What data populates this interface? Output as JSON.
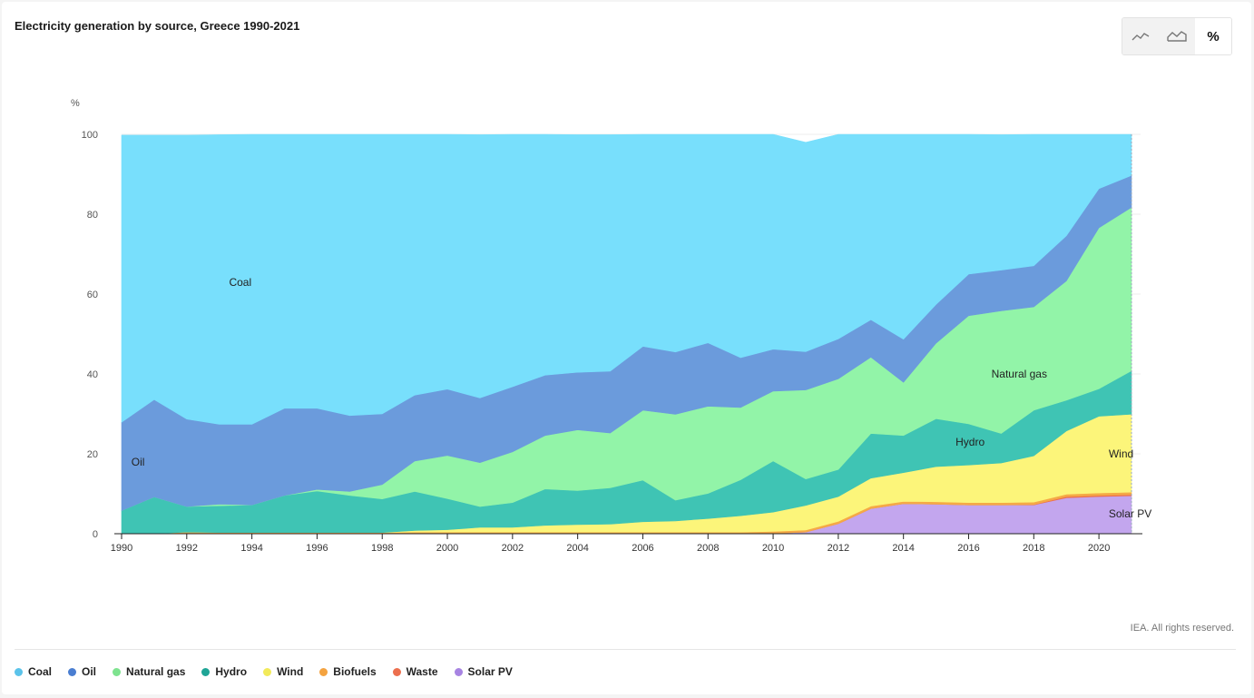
{
  "chart_data": {
    "type": "area",
    "stacked": true,
    "normalized": true,
    "title": "Electricity generation by source, Greece 1990-2021",
    "ylabel": "%",
    "ylim": [
      0,
      100
    ],
    "yticks": [
      0,
      20,
      40,
      60,
      80,
      100
    ],
    "xticks": [
      1990,
      1992,
      1994,
      1996,
      1998,
      2000,
      2002,
      2004,
      2006,
      2008,
      2010,
      2012,
      2014,
      2016,
      2018,
      2020
    ],
    "x": [
      1990,
      1991,
      1992,
      1993,
      1994,
      1995,
      1996,
      1997,
      1998,
      1999,
      2000,
      2001,
      2002,
      2003,
      2004,
      2005,
      2006,
      2007,
      2008,
      2009,
      2010,
      2011,
      2012,
      2013,
      2014,
      2015,
      2016,
      2017,
      2018,
      2019,
      2020,
      2021
    ],
    "series": [
      {
        "name": "Solar PV",
        "color": "#c3a6ee",
        "values": [
          0,
          0,
          0,
          0,
          0,
          0,
          0,
          0,
          0,
          0,
          0,
          0,
          0,
          0,
          0,
          0,
          0,
          0,
          0,
          0,
          0.1,
          0.4,
          2.5,
          6.3,
          7.5,
          7.4,
          7.2,
          7.2,
          7.2,
          9.0,
          9.3,
          9.5
        ]
      },
      {
        "name": "Waste",
        "color": "#ec6f4e",
        "values": [
          0,
          0,
          0,
          0,
          0,
          0,
          0,
          0,
          0,
          0,
          0,
          0,
          0,
          0,
          0,
          0,
          0,
          0,
          0,
          0,
          0,
          0,
          0,
          0,
          0,
          0,
          0,
          0,
          0.1,
          0.3,
          0.3,
          0.3
        ]
      },
      {
        "name": "Biofuels",
        "color": "#f5a946",
        "values": [
          0,
          0,
          0.4,
          0.3,
          0.3,
          0.3,
          0.3,
          0.3,
          0.3,
          0.4,
          0.4,
          0.4,
          0.4,
          0.4,
          0.4,
          0.4,
          0.4,
          0.4,
          0.4,
          0.4,
          0.5,
          0.5,
          0.6,
          0.6,
          0.6,
          0.6,
          0.6,
          0.6,
          0.6,
          0.6,
          0.6,
          0.6
        ]
      },
      {
        "name": "Wind",
        "color": "#fcf57a",
        "values": [
          0,
          0,
          0,
          0,
          0,
          0,
          0,
          0,
          0,
          0.4,
          0.6,
          1.2,
          1.2,
          1.7,
          1.9,
          2.0,
          2.6,
          2.8,
          3.4,
          4.1,
          4.8,
          6.2,
          6.2,
          7.0,
          7.2,
          8.8,
          9.4,
          9.9,
          11.6,
          15.8,
          19.2,
          19.5
        ]
      },
      {
        "name": "Hydro",
        "color": "#3fc4b4",
        "values": [
          5.8,
          9.2,
          6.4,
          6.7,
          6.9,
          9.3,
          10.4,
          9.3,
          8.4,
          9.8,
          7.8,
          5.2,
          6.2,
          9.1,
          8.5,
          9.1,
          10.4,
          5.2,
          6.3,
          9.0,
          12.8,
          6.6,
          6.8,
          11.2,
          9.3,
          12.0,
          10.3,
          7.4,
          11.4,
          7.7,
          6.9,
          10.9
        ]
      },
      {
        "name": "Natural gas",
        "color": "#92f4a8",
        "values": [
          0,
          0,
          0,
          0.4,
          0,
          0,
          0.4,
          1.0,
          3.6,
          7.6,
          10.8,
          11.0,
          12.7,
          13.4,
          15.2,
          13.7,
          17.5,
          21.5,
          21.8,
          18.1,
          17.5,
          22.3,
          22.7,
          19.1,
          13.3,
          18.9,
          27.1,
          30.7,
          25.9,
          29.9,
          40.3,
          40.9
        ]
      },
      {
        "name": "Oil",
        "color": "#6b9bdc",
        "values": [
          22.1,
          24.4,
          21.9,
          20.0,
          20.2,
          21.8,
          20.3,
          19.0,
          17.7,
          16.5,
          16.6,
          16.2,
          16.3,
          15.1,
          14.4,
          15.5,
          16.0,
          15.6,
          15.9,
          12.5,
          10.5,
          9.6,
          10.0,
          9.4,
          10.8,
          9.7,
          10.4,
          10.2,
          10.3,
          11.3,
          9.8,
          8.0
        ]
      },
      {
        "name": "Coal",
        "color": "#78dffc",
        "values": [
          71.9,
          66.2,
          71.1,
          72.5,
          72.6,
          68.6,
          68.6,
          70.4,
          70.0,
          65.3,
          63.8,
          65.9,
          63.2,
          60.3,
          59.5,
          59.2,
          53.1,
          54.5,
          52.2,
          55.9,
          53.8,
          52.4,
          51.2,
          46.4,
          51.3,
          42.6,
          35.0,
          33.9,
          32.9,
          25.4,
          13.6,
          10.3
        ]
      }
    ],
    "annotations": [
      {
        "text": "Coal",
        "x": 1993.3,
        "y": 63
      },
      {
        "text": "Oil",
        "x": 1990.3,
        "y": 18
      },
      {
        "text": "Natural gas",
        "x": 2016.7,
        "y": 40
      },
      {
        "text": "Hydro",
        "x": 2015.6,
        "y": 23
      },
      {
        "text": "Wind",
        "x": 2020.3,
        "y": 20
      },
      {
        "text": "Solar PV",
        "x": 2020.3,
        "y": 5
      }
    ]
  },
  "ui": {
    "toggles": [
      {
        "name": "line-chart-toggle-icon",
        "glyph": "≀",
        "active": false
      },
      {
        "name": "area-chart-toggle-icon",
        "glyph": "◭",
        "active": false
      },
      {
        "name": "percent-toggle-icon",
        "glyph": "%",
        "active": true
      }
    ],
    "copyright": "IEA. All rights reserved."
  },
  "legend": [
    {
      "label": "Coal",
      "color": "#5bc3ea"
    },
    {
      "label": "Oil",
      "color": "#4a7ed1"
    },
    {
      "label": "Natural gas",
      "color": "#7ee38f"
    },
    {
      "label": "Hydro",
      "color": "#1fa596"
    },
    {
      "label": "Wind",
      "color": "#f2ea5a"
    },
    {
      "label": "Biofuels",
      "color": "#f4a340"
    },
    {
      "label": "Waste",
      "color": "#ec6f4e"
    },
    {
      "label": "Solar PV",
      "color": "#a784e2"
    }
  ]
}
